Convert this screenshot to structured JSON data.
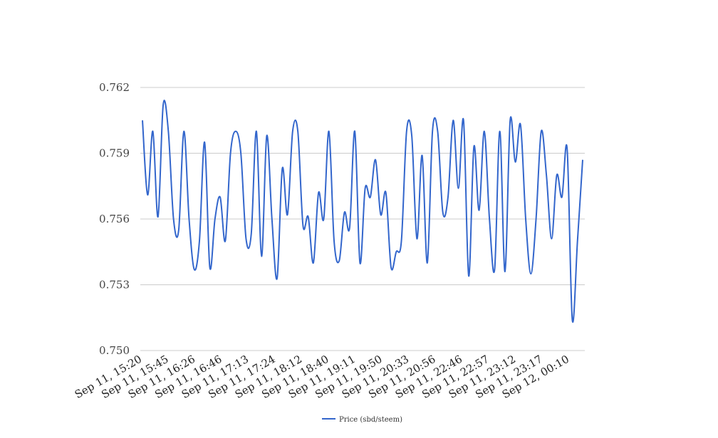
{
  "chart_data": {
    "type": "line",
    "title": "",
    "xlabel": "",
    "ylabel": "",
    "ylim": [
      0.75,
      0.762
    ],
    "yticks": [
      "0.750",
      "0.753",
      "0.756",
      "0.759",
      "0.762"
    ],
    "x_tick_labels": [
      "Sep 11, 15:20",
      "Sep 11, 15:45",
      "Sep 11, 16:26",
      "Sep 11, 16:46",
      "Sep 11, 17:13",
      "Sep 11, 17:24",
      "Sep 11, 18:12",
      "Sep 11, 18:40",
      "Sep 11, 19:11",
      "Sep 11, 19:50",
      "Sep 11, 20:33",
      "Sep 11, 20:56",
      "Sep 11, 22:46",
      "Sep 11, 22:57",
      "Sep 11, 23:12",
      "Sep 11, 23:17",
      "Sep 12, 00:10"
    ],
    "grid": true,
    "legend_position": "bottom",
    "series": [
      {
        "name": "Price (sbd/steem)",
        "color": "#3366cc",
        "values": [
          0.7605,
          0.7571,
          0.76,
          0.7561,
          0.7612,
          0.76,
          0.756,
          0.7555,
          0.76,
          0.756,
          0.7537,
          0.755,
          0.7595,
          0.7538,
          0.756,
          0.757,
          0.755,
          0.759,
          0.76,
          0.759,
          0.7551,
          0.7553,
          0.76,
          0.7543,
          0.7598,
          0.756,
          0.7533,
          0.7583,
          0.7562,
          0.76,
          0.76,
          0.7557,
          0.7561,
          0.754,
          0.7572,
          0.756,
          0.76,
          0.755,
          0.7541,
          0.7563,
          0.7556,
          0.76,
          0.754,
          0.7574,
          0.757,
          0.7587,
          0.7562,
          0.7572,
          0.7538,
          0.7545,
          0.755,
          0.76,
          0.7598,
          0.7551,
          0.7589,
          0.754,
          0.76,
          0.76,
          0.7563,
          0.757,
          0.7605,
          0.7574,
          0.7605,
          0.7534,
          0.7593,
          0.7564,
          0.76,
          0.756,
          0.7537,
          0.76,
          0.7536,
          0.7605,
          0.7586,
          0.7603,
          0.756,
          0.7535,
          0.756,
          0.76,
          0.758,
          0.7551,
          0.758,
          0.757,
          0.7592,
          0.7514,
          0.755,
          0.7587
        ]
      }
    ]
  }
}
